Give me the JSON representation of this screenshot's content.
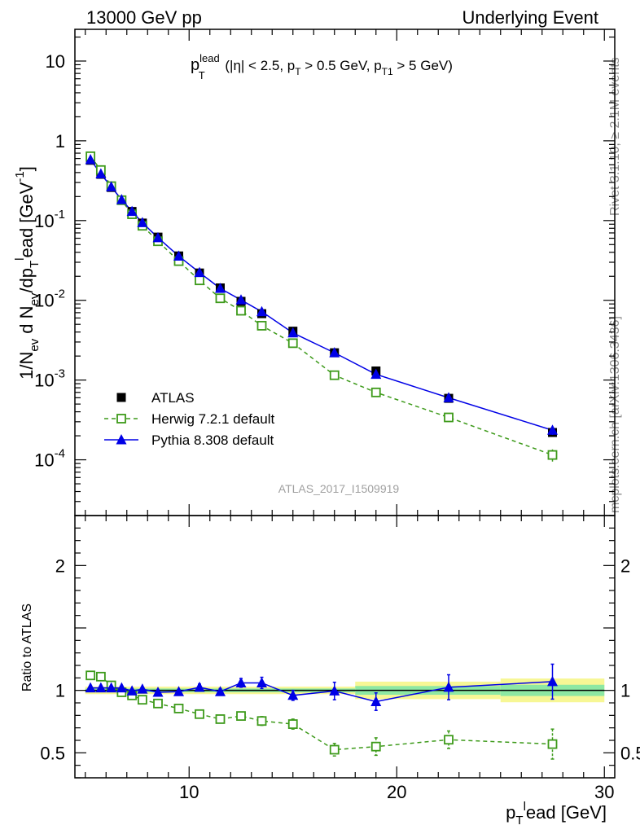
{
  "header": {
    "left": "13000 GeV pp",
    "right": "Underlying Event"
  },
  "side_labels": {
    "rivet": "Rivet 3.1.10, ≥ 2.1M events",
    "mcplots": "mcplots.cern.ch [arXiv:1306.3436]"
  },
  "analysis_label": "ATLAS_2017_I1509919",
  "colors": {
    "atlas": "#000000",
    "herwig": "#3d9a1a",
    "pythia": "#0000e6",
    "band_inner": "#8de8a3",
    "band_outer": "#f7f795"
  },
  "chart_data": [
    {
      "type": "scatter",
      "panel": "main",
      "title": {
        "base": "p",
        "sup": "lead",
        "sub": "T",
        "rest": " (|η| < 2.5, p",
        "rest_sub": "T",
        "rest2": " > 0.5 GeV, p",
        "rest2_sub": "T1",
        "rest3": " > 5 GeV)"
      },
      "ylabel": "1/N_ev d N_ev/dp_T^lead [GeV^-1]",
      "yscale": "log",
      "ylim": [
        2e-05,
        25
      ],
      "xlim": [
        4.5,
        30.5
      ],
      "ytick_labels": [
        {
          "base": "10",
          "exp": "-4",
          "value": 0.0001
        },
        {
          "base": "10",
          "exp": "-3",
          "value": 0.001
        },
        {
          "base": "10",
          "exp": "-2",
          "value": 0.01
        },
        {
          "base": "10",
          "exp": "-1",
          "value": 0.1
        },
        {
          "base": "1",
          "exp": "",
          "value": 1
        },
        {
          "base": "10",
          "exp": "",
          "value": 10
        }
      ],
      "legend_position": "lower-left",
      "x": [
        5.25,
        5.75,
        6.25,
        6.75,
        7.25,
        7.75,
        8.5,
        9.5,
        10.5,
        11.5,
        12.5,
        13.5,
        15.0,
        17.0,
        19.0,
        22.5,
        27.5
      ],
      "series": [
        {
          "name": "ATLAS",
          "marker": "filled-square",
          "values": [
            0.57,
            0.38,
            0.26,
            0.18,
            0.13,
            0.093,
            0.062,
            0.036,
            0.022,
            0.0143,
            0.0097,
            0.0068,
            0.0041,
            0.0022,
            0.0013,
            0.00059,
            0.00022
          ],
          "errors": [
            0.01,
            0.006,
            0.004,
            0.003,
            0.002,
            0.0015,
            0.001,
            0.0007,
            0.0004,
            0.0003,
            0.0002,
            0.00015,
            0.0001,
            6e-05,
            4e-05,
            2e-05,
            2e-05
          ]
        },
        {
          "name": "Herwig 7.2.1 default",
          "marker": "open-square",
          "dashed": true,
          "values": [
            0.64,
            0.43,
            0.27,
            0.18,
            0.12,
            0.086,
            0.055,
            0.031,
            0.0178,
            0.0106,
            0.0074,
            0.0048,
            0.0029,
            0.00115,
            0.0007,
            0.00034,
            0.000115
          ],
          "errors": [
            0.01,
            0.007,
            0.004,
            0.003,
            0.002,
            0.0015,
            0.001,
            0.0007,
            0.0004,
            0.0003,
            0.0002,
            0.00015,
            0.0001,
            5e-05,
            3e-05,
            2e-05,
            2e-05
          ]
        },
        {
          "name": "Pythia 8.308 default",
          "marker": "filled-triangle",
          "values": [
            0.58,
            0.385,
            0.265,
            0.183,
            0.13,
            0.094,
            0.061,
            0.0358,
            0.0223,
            0.0141,
            0.0101,
            0.0072,
            0.0039,
            0.0022,
            0.00118,
            0.0006,
            0.000235
          ],
          "errors": [
            0.006,
            0.004,
            0.003,
            0.002,
            0.0015,
            0.001,
            0.0008,
            0.0005,
            0.0004,
            0.0003,
            0.0002,
            0.0002,
            0.0001,
            7e-05,
            5e-05,
            3e-05,
            3e-05
          ]
        }
      ]
    },
    {
      "type": "line",
      "panel": "ratio",
      "ylabel": "Ratio to ATLAS",
      "xlabel": {
        "base": "p",
        "sub": "T",
        "rest": "ead [GeV]",
        "sup": "l"
      },
      "xlim": [
        4.5,
        30.5
      ],
      "ylim": [
        0.3,
        2.4
      ],
      "xticks": [
        10,
        20,
        30
      ],
      "yticks": [
        0.5,
        1,
        2
      ],
      "x": [
        5.25,
        5.75,
        6.25,
        6.75,
        7.25,
        7.75,
        8.5,
        9.5,
        10.5,
        11.5,
        12.5,
        13.5,
        15.0,
        17.0,
        19.0,
        22.5,
        27.5
      ],
      "bands": [
        {
          "x0": 5.0,
          "x1": 18.0,
          "inner": 0.015,
          "outer": 0.03
        },
        {
          "x0": 18.0,
          "x1": 25.0,
          "inner": 0.035,
          "outer": 0.07
        },
        {
          "x0": 25.0,
          "x1": 30.0,
          "inner": 0.045,
          "outer": 0.095
        }
      ],
      "series": [
        {
          "name": "Herwig 7.2.1 default",
          "values": [
            1.12,
            1.11,
            1.04,
            0.985,
            0.96,
            0.925,
            0.895,
            0.855,
            0.81,
            0.77,
            0.795,
            0.755,
            0.73,
            0.525,
            0.55,
            0.605,
            0.57
          ],
          "errors": [
            0.01,
            0.01,
            0.01,
            0.01,
            0.01,
            0.01,
            0.012,
            0.015,
            0.02,
            0.02,
            0.03,
            0.035,
            0.04,
            0.05,
            0.07,
            0.07,
            0.12
          ]
        },
        {
          "name": "Pythia 8.308 default",
          "values": [
            1.02,
            1.02,
            1.02,
            1.02,
            0.995,
            1.01,
            0.985,
            0.99,
            1.025,
            0.99,
            1.06,
            1.06,
            0.96,
            0.995,
            0.91,
            1.025,
            1.07
          ],
          "errors": [
            0.01,
            0.01,
            0.01,
            0.01,
            0.01,
            0.012,
            0.015,
            0.015,
            0.025,
            0.025,
            0.035,
            0.045,
            0.04,
            0.07,
            0.07,
            0.1,
            0.14
          ]
        }
      ]
    }
  ]
}
